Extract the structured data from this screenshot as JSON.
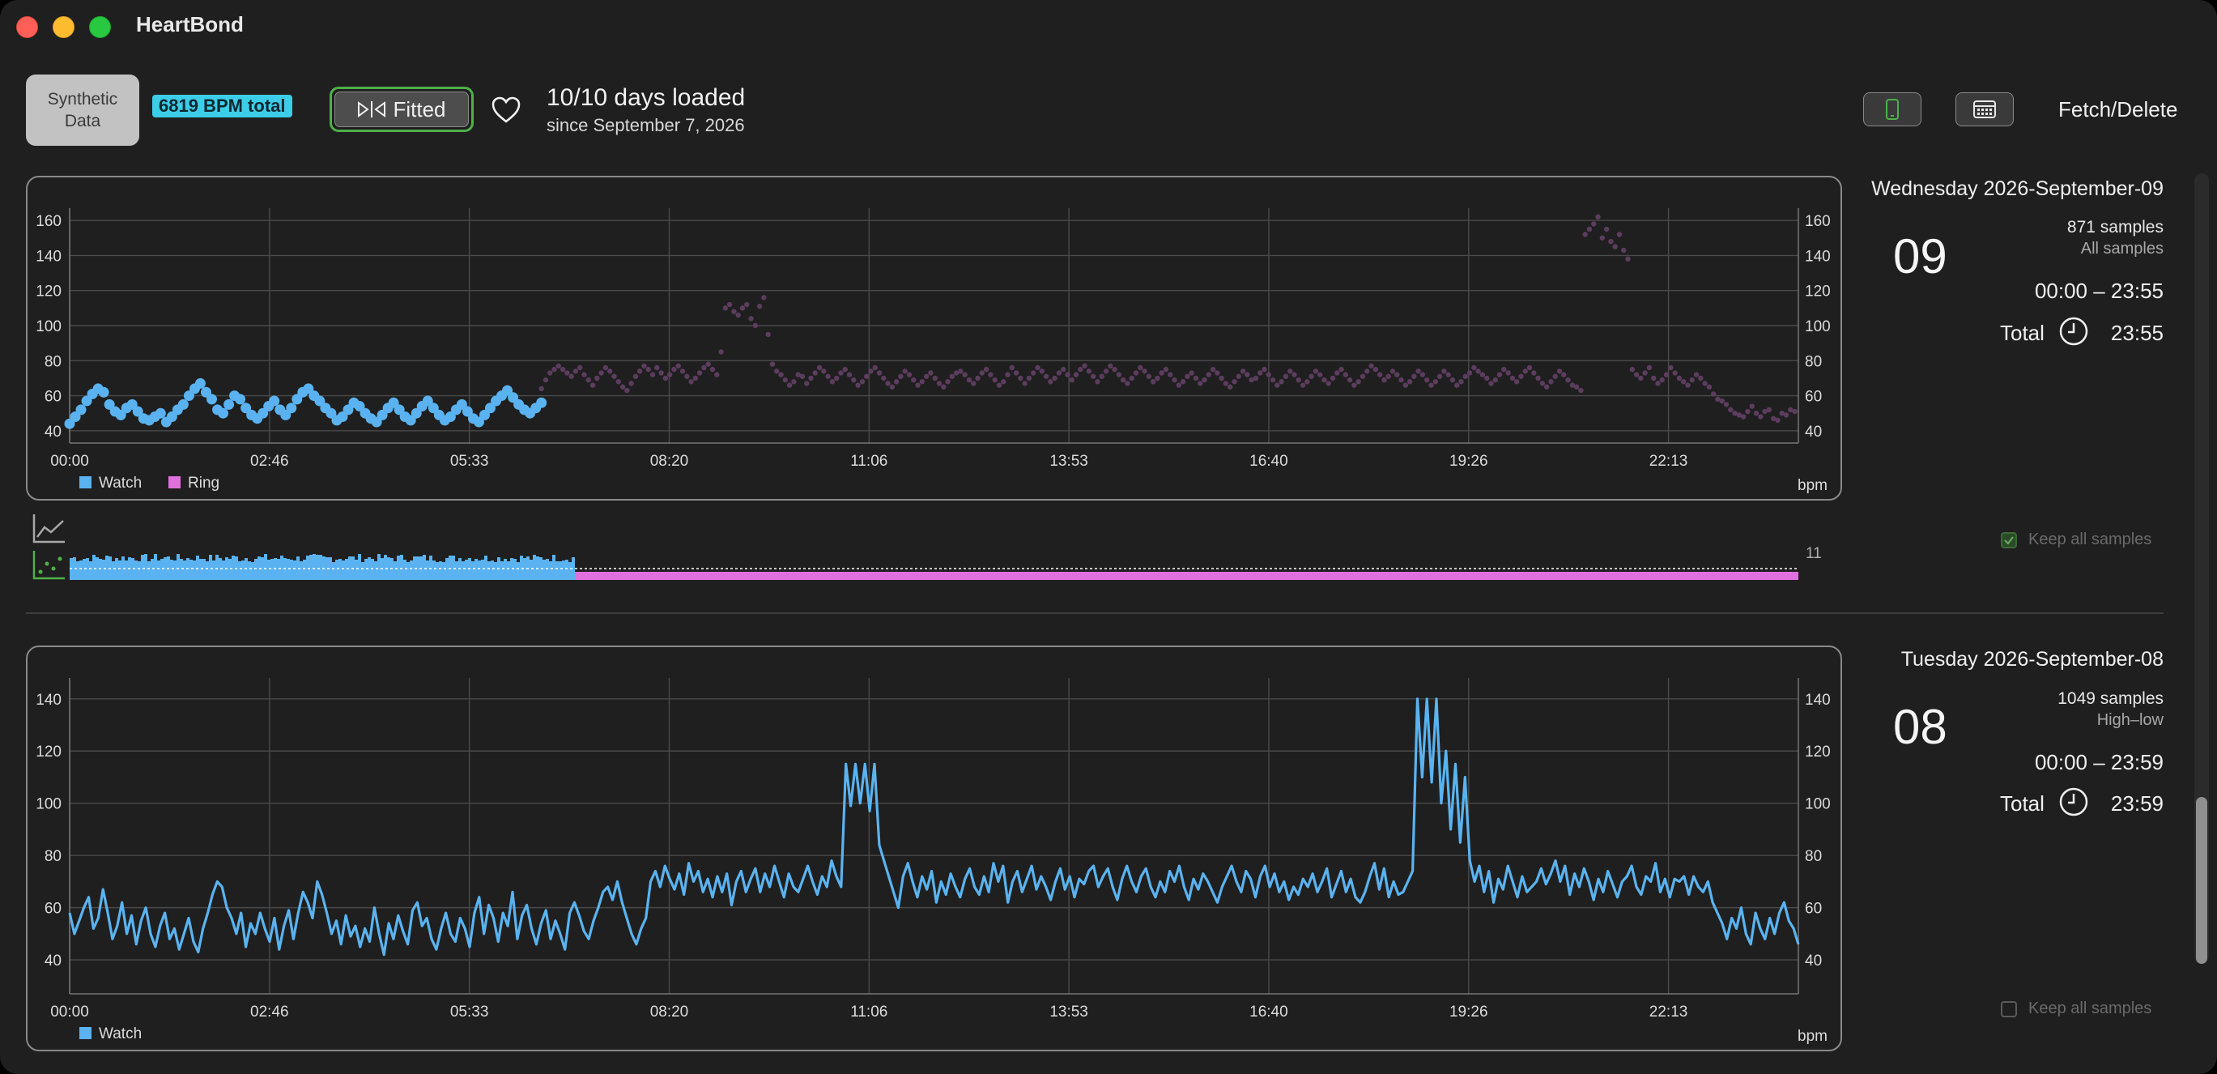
{
  "app": {
    "title": "HeartBond"
  },
  "colors": {
    "watch": "#5ab3f0",
    "ring": "#e070de",
    "ring_dim": "#5c3d5e",
    "accent_green": "#4fb04a",
    "badge": "#3ccde8"
  },
  "toolbar": {
    "synthetic_label": "Synthetic Data",
    "bpm_total": "6819 BPM total",
    "fitted_label": "Fitted",
    "days_loaded": "10/10 days loaded",
    "since": "since September 7, 2026",
    "fetch_delete": "Fetch/Delete",
    "icons": [
      "fit-icon",
      "heart-icon",
      "watch-icon",
      "calendar-icon"
    ]
  },
  "days": [
    {
      "title": "Wednesday 2026-September-09",
      "day_number": "09",
      "samples": "871 samples",
      "mode": "All samples",
      "range": "00:00 – 23:55",
      "total_label": "Total",
      "total_value": "23:55",
      "keep_all_label": "Keep all samples",
      "keep_all_checked": true,
      "strip_count": "11"
    },
    {
      "title": "Tuesday 2026-September-08",
      "day_number": "08",
      "samples": "1049 samples",
      "mode": "High–low",
      "range": "00:00 – 23:59",
      "total_label": "Total",
      "total_value": "23:59",
      "keep_all_label": "Keep all samples",
      "keep_all_checked": false
    }
  ],
  "chart_data": [
    {
      "type": "scatter",
      "x_unit": "time of day",
      "x_ticks": [
        "00:00",
        "02:46",
        "05:33",
        "08:20",
        "11:06",
        "13:53",
        "16:40",
        "19:26",
        "22:13"
      ],
      "y_ticks": [
        40,
        60,
        80,
        100,
        120,
        140,
        160
      ],
      "ylim": [
        33,
        167
      ],
      "unit_label": "bpm",
      "legend": [
        "Watch",
        "Ring"
      ],
      "series": [
        {
          "name": "Watch",
          "x_range_hours": [
            0,
            6.55
          ],
          "values": [
            44,
            48,
            52,
            57,
            61,
            64,
            62,
            55,
            51,
            49,
            53,
            55,
            51,
            47,
            46,
            48,
            50,
            45,
            48,
            52,
            55,
            60,
            64,
            67,
            62,
            58,
            52,
            50,
            55,
            60,
            58,
            53,
            49,
            47,
            50,
            54,
            57,
            52,
            49,
            53,
            58,
            62,
            64,
            60,
            57,
            53,
            50,
            46,
            48,
            52,
            56,
            54,
            50,
            47,
            45,
            49,
            53,
            56,
            52,
            48,
            46,
            50,
            54,
            57,
            53,
            49,
            46,
            48,
            52,
            55,
            51,
            47,
            45,
            49,
            53,
            57,
            60,
            63,
            59,
            55,
            52,
            50,
            53,
            56
          ]
        },
        {
          "name": "Ring",
          "x_range_hours": [
            6.55,
            23.95
          ],
          "values": [
            64,
            69,
            73,
            75,
            77,
            75,
            73,
            71,
            74,
            76,
            72,
            69,
            66,
            70,
            73,
            76,
            74,
            71,
            68,
            65,
            63,
            67,
            71,
            74,
            77,
            75,
            72,
            76,
            73,
            70,
            72,
            75,
            77,
            74,
            71,
            68,
            70,
            73,
            76,
            78,
            75,
            72,
            85,
            110,
            112,
            108,
            106,
            110,
            112,
            104,
            100,
            111,
            116,
            95,
            78,
            74,
            72,
            69,
            66,
            68,
            72,
            71,
            67,
            70,
            73,
            76,
            74,
            71,
            68,
            70,
            73,
            75,
            72,
            69,
            66,
            68,
            71,
            74,
            76,
            73,
            70,
            67,
            65,
            68,
            71,
            74,
            72,
            69,
            66,
            68,
            71,
            73,
            70,
            67,
            65,
            68,
            71,
            73,
            74,
            72,
            69,
            67,
            70,
            73,
            75,
            72,
            69,
            66,
            68,
            72,
            76,
            73,
            70,
            67,
            70,
            73,
            76,
            74,
            71,
            68,
            70,
            73,
            75,
            72,
            69,
            72,
            75,
            77,
            74,
            71,
            68,
            71,
            74,
            77,
            75,
            72,
            69,
            67,
            70,
            73,
            76,
            74,
            71,
            68,
            70,
            73,
            75,
            72,
            69,
            66,
            68,
            71,
            73,
            70,
            67,
            69,
            72,
            75,
            73,
            70,
            67,
            65,
            68,
            71,
            74,
            72,
            69,
            70,
            73,
            75,
            72,
            69,
            66,
            68,
            71,
            74,
            72,
            69,
            66,
            68,
            71,
            74,
            72,
            69,
            67,
            70,
            73,
            75,
            72,
            69,
            66,
            68,
            71,
            74,
            77,
            75,
            72,
            69,
            71,
            74,
            72,
            69,
            66,
            68,
            71,
            74,
            72,
            69,
            66,
            68,
            71,
            74,
            72,
            69,
            66,
            68,
            71,
            73,
            76,
            74,
            72,
            70,
            67,
            69,
            72,
            75,
            73,
            70,
            68,
            71,
            74,
            76,
            73,
            70,
            67,
            65,
            68,
            71,
            74,
            72,
            69,
            66,
            65,
            63,
            152,
            155,
            158,
            162,
            150,
            155,
            148,
            145,
            152,
            143,
            138,
            75,
            72,
            70,
            73,
            76,
            70,
            67,
            69,
            72,
            76,
            73,
            70,
            68,
            66,
            69,
            72,
            70,
            67,
            65,
            61,
            58,
            57,
            55,
            52,
            50,
            49,
            48,
            51,
            54,
            50,
            48,
            51,
            52,
            47,
            46,
            50,
            49,
            52,
            51
          ]
        }
      ]
    },
    {
      "type": "line",
      "x_unit": "time of day",
      "x_ticks": [
        "00:00",
        "02:46",
        "05:33",
        "08:20",
        "11:06",
        "13:53",
        "16:40",
        "19:26",
        "22:13"
      ],
      "y_ticks": [
        40,
        60,
        80,
        100,
        120,
        140
      ],
      "ylim": [
        27,
        148
      ],
      "unit_label": "bpm",
      "legend": [
        "Watch"
      ],
      "series": [
        {
          "name": "Watch",
          "x_range_hours": [
            0,
            24
          ],
          "values": [
            58,
            50,
            55,
            60,
            64,
            52,
            56,
            67,
            58,
            48,
            53,
            62,
            50,
            57,
            46,
            55,
            60,
            50,
            45,
            53,
            58,
            48,
            52,
            44,
            50,
            56,
            47,
            43,
            52,
            58,
            65,
            70,
            68,
            60,
            56,
            50,
            58,
            45,
            54,
            50,
            58,
            52,
            47,
            56,
            44,
            53,
            59,
            48,
            58,
            66,
            62,
            56,
            70,
            65,
            58,
            50,
            55,
            46,
            57,
            49,
            53,
            45,
            52,
            47,
            60,
            50,
            42,
            54,
            48,
            57,
            51,
            46,
            59,
            62,
            53,
            56,
            48,
            44,
            52,
            58,
            50,
            47,
            56,
            52,
            45,
            58,
            64,
            50,
            61,
            56,
            47,
            58,
            53,
            66,
            48,
            57,
            61,
            52,
            46,
            54,
            59,
            48,
            55,
            50,
            44,
            58,
            62,
            57,
            51,
            48,
            55,
            60,
            66,
            68,
            63,
            70,
            62,
            56,
            50,
            46,
            52,
            56,
            70,
            74,
            68,
            76,
            71,
            67,
            73,
            65,
            77,
            70,
            74,
            66,
            71,
            64,
            72,
            66,
            73,
            61,
            70,
            74,
            66,
            71,
            75,
            66,
            73,
            68,
            76,
            70,
            64,
            73,
            68,
            66,
            71,
            76,
            70,
            65,
            72,
            68,
            78,
            72,
            68,
            115,
            99,
            115,
            100,
            115,
            97,
            115,
            84,
            78,
            72,
            66,
            60,
            72,
            77,
            70,
            64,
            72,
            67,
            74,
            62,
            70,
            65,
            73,
            68,
            64,
            71,
            75,
            68,
            65,
            72,
            66,
            77,
            70,
            76,
            62,
            70,
            74,
            66,
            71,
            76,
            67,
            72,
            68,
            63,
            70,
            75,
            67,
            72,
            64,
            71,
            69,
            74,
            76,
            68,
            72,
            75,
            68,
            63,
            71,
            76,
            70,
            66,
            72,
            75,
            68,
            64,
            70,
            66,
            74,
            70,
            76,
            68,
            63,
            71,
            67,
            73,
            70,
            66,
            62,
            68,
            72,
            76,
            70,
            66,
            74,
            71,
            64,
            72,
            76,
            68,
            73,
            66,
            70,
            63,
            68,
            65,
            71,
            68,
            73,
            66,
            70,
            75,
            64,
            69,
            74,
            66,
            71,
            64,
            62,
            66,
            72,
            77,
            67,
            75,
            64,
            70,
            65,
            66,
            70,
            74,
            140,
            110,
            140,
            108,
            140,
            100,
            120,
            90,
            115,
            85,
            110,
            78,
            70,
            76,
            66,
            74,
            62,
            71,
            67,
            76,
            70,
            64,
            72,
            66,
            68,
            70,
            75,
            69,
            73,
            78,
            70,
            76,
            65,
            73,
            68,
            75,
            70,
            63,
            71,
            66,
            74,
            69,
            64,
            70,
            72,
            76,
            68,
            65,
            72,
            70,
            77,
            66,
            71,
            64,
            71,
            70,
            72,
            65,
            72,
            68,
            66,
            70,
            62,
            58,
            54,
            48,
            56,
            52,
            60,
            50,
            46,
            58,
            52,
            48,
            56,
            50,
            58,
            62,
            55,
            52,
            46
          ]
        }
      ]
    }
  ]
}
